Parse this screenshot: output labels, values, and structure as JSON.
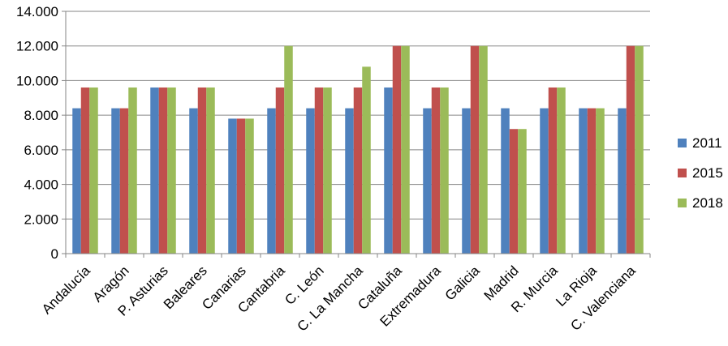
{
  "chart_data": {
    "type": "bar",
    "categories": [
      "Andalucía",
      "Aragón",
      "P. Asturias",
      "Baleares",
      "Canarias",
      "Cantabria",
      "C. León",
      "C. La Mancha",
      "Cataluña",
      "Extremadura",
      "Galicia",
      "Madrid",
      "R. Murcia",
      "La Rioja",
      "C. Valenciana"
    ],
    "series": [
      {
        "name": "2011",
        "color": "#4F81BD",
        "values": [
          8400,
          8400,
          9600,
          8400,
          7800,
          8400,
          8400,
          8400,
          9600,
          8400,
          8400,
          8400,
          8400,
          8400,
          8400
        ]
      },
      {
        "name": "2015",
        "color": "#C0504D",
        "values": [
          9600,
          8400,
          9600,
          9600,
          7800,
          9600,
          9600,
          9600,
          12000,
          9600,
          12000,
          7200,
          9600,
          8400,
          12000
        ]
      },
      {
        "name": "2018",
        "color": "#9BBB59",
        "values": [
          9600,
          9600,
          9600,
          9600,
          7800,
          12000,
          9600,
          10800,
          12000,
          9600,
          12000,
          7200,
          9600,
          8400,
          12000
        ]
      }
    ],
    "ylim": [
      0,
      14000
    ],
    "yticks": [
      0,
      2000,
      4000,
      6000,
      8000,
      10000,
      12000,
      14000
    ],
    "ytick_labels": [
      "0",
      "2.000",
      "4.000",
      "6.000",
      "8.000",
      "10.000",
      "12.000",
      "14.000"
    ],
    "grid": true,
    "legend_position": "right",
    "title": "",
    "xlabel": "",
    "ylabel": ""
  }
}
